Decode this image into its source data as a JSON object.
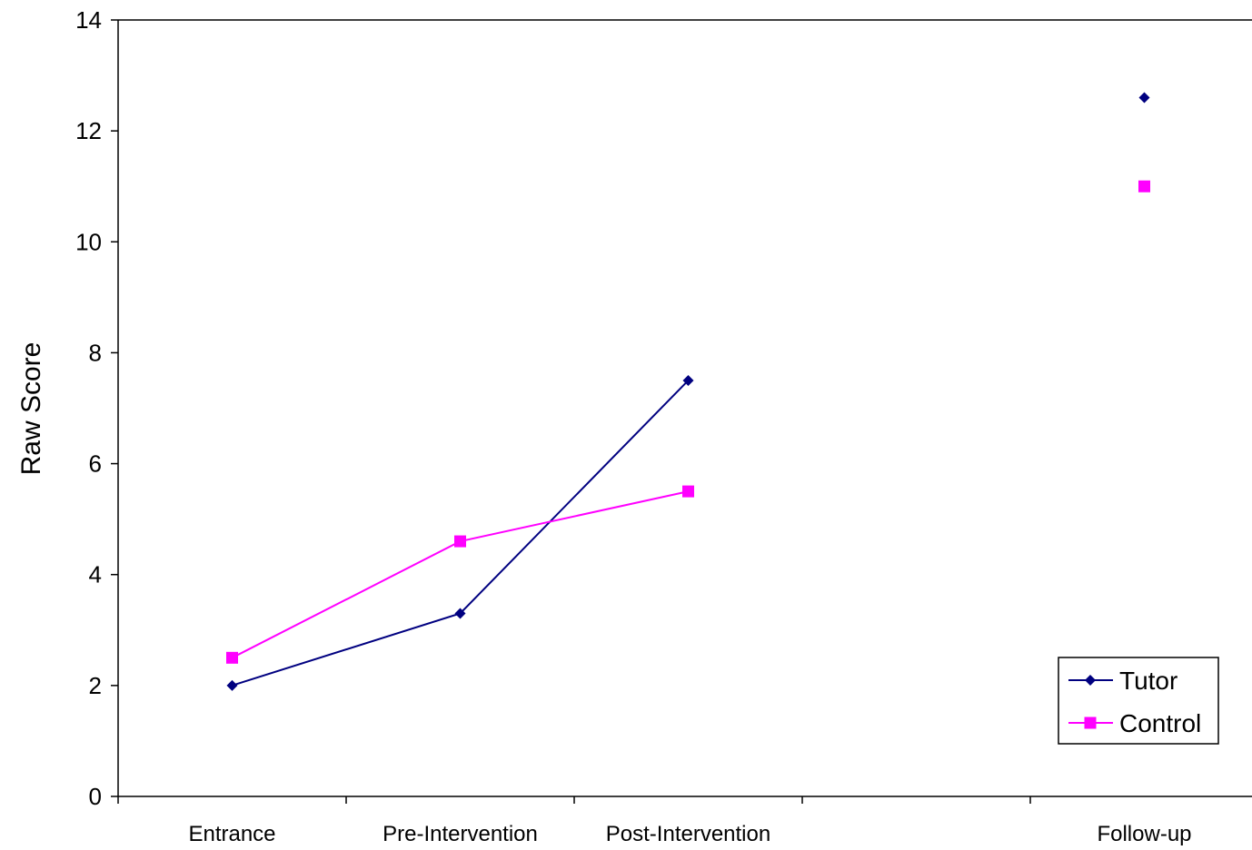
{
  "chart_data": {
    "type": "line",
    "title": "",
    "xlabel": "",
    "ylabel": "Raw Score",
    "ylim": [
      0,
      14
    ],
    "yticks": [
      0,
      2,
      4,
      6,
      8,
      10,
      12,
      14
    ],
    "categories": [
      "Entrance",
      "Pre-Intervention",
      "Post-Intervention",
      "",
      "Follow-up"
    ],
    "grid": false,
    "legend_position": "bottom-right",
    "series": [
      {
        "name": "Tutor",
        "color": "#000080",
        "marker": "diamond",
        "values": [
          2.0,
          3.3,
          7.5,
          null,
          12.6
        ]
      },
      {
        "name": "Control",
        "color": "#ff00ff",
        "marker": "square",
        "values": [
          2.5,
          4.6,
          5.5,
          null,
          11.0
        ]
      }
    ]
  }
}
